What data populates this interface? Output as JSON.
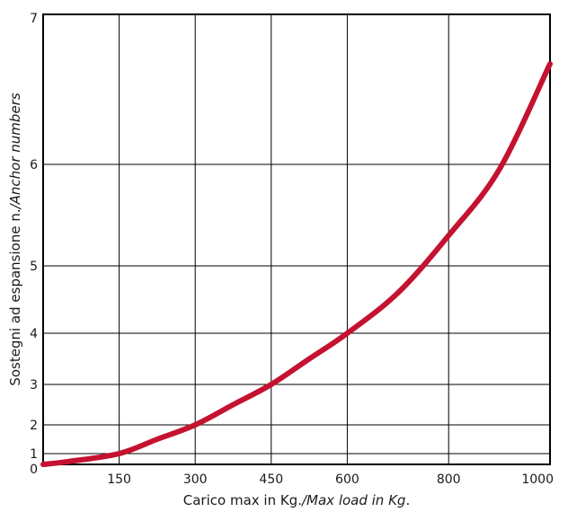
{
  "chart_data": {
    "type": "line",
    "title": "",
    "xlabel": {
      "main": "Carico max in Kg.",
      "italic": "/Max load in Kg",
      "suffix": "."
    },
    "ylabel": {
      "main": "Sostegni ad espansione n.",
      "italic": "/Anchor numbers"
    },
    "xlim": [
      0,
      1000
    ],
    "x_ticks": [
      150,
      300,
      450,
      600,
      800,
      1000
    ],
    "x_tick_labels": [
      "150",
      "300",
      "450",
      "600",
      "800",
      "1000"
    ],
    "y_ticks": [
      0,
      1,
      2,
      3,
      4,
      5,
      6,
      7
    ],
    "y_tick_labels": [
      "0",
      "1",
      "2",
      "3",
      "4",
      "5",
      "6",
      "7"
    ],
    "grid": true,
    "series": [
      {
        "color": "#c41230",
        "points": [
          {
            "x": 0,
            "y": 0
          },
          {
            "x": 50,
            "y": 0.27
          },
          {
            "x": 150,
            "y": 1
          },
          {
            "x": 225,
            "y": 1.5
          },
          {
            "x": 300,
            "y": 2
          },
          {
            "x": 375,
            "y": 2.5
          },
          {
            "x": 450,
            "y": 3
          },
          {
            "x": 525,
            "y": 3.5
          },
          {
            "x": 600,
            "y": 4
          },
          {
            "x": 700,
            "y": 4.6
          },
          {
            "x": 800,
            "y": 5.3
          },
          {
            "x": 900,
            "y": 5.95
          },
          {
            "x": 1000,
            "y": 6.67
          }
        ]
      }
    ]
  }
}
